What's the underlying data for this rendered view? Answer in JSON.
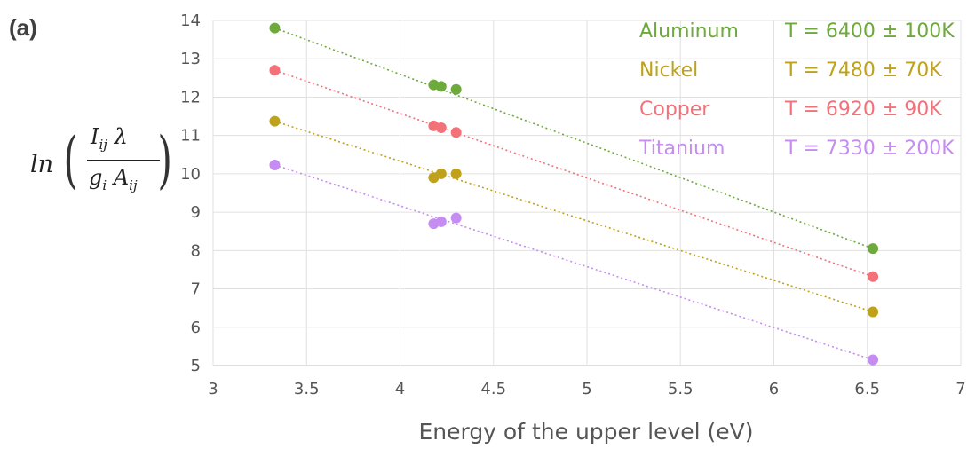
{
  "panel_label": "(a)",
  "chart_data": {
    "type": "scatter",
    "title": "",
    "xlabel": "Energy of the upper level (eV)",
    "ylabel": {
      "prefix": "ln",
      "numerator": "I_{ij} λ",
      "denominator": "g_i A_{ij}"
    },
    "xlim": [
      3,
      7
    ],
    "ylim": [
      5,
      14
    ],
    "xticks": [
      "3",
      "3.5",
      "4",
      "4.5",
      "5",
      "5.5",
      "6",
      "6.5",
      "7"
    ],
    "yticks": [
      "5",
      "6",
      "7",
      "8",
      "9",
      "10",
      "11",
      "12",
      "13",
      "14"
    ],
    "grid": true,
    "legend_position": "top-right",
    "series": [
      {
        "name": "Aluminum",
        "annotation": "T = 6400 ± 100K",
        "color": "#6ea93c",
        "points": [
          [
            3.33,
            13.8
          ],
          [
            4.18,
            12.32
          ],
          [
            4.22,
            12.28
          ],
          [
            4.3,
            12.2
          ],
          [
            6.53,
            8.05
          ]
        ],
        "trend": [
          [
            3.33,
            13.8
          ],
          [
            6.53,
            8.05
          ]
        ]
      },
      {
        "name": "Nickel",
        "annotation": "T = 7480 ± 70K",
        "color": "#bfa21a",
        "points": [
          [
            3.33,
            11.37
          ],
          [
            4.18,
            9.9
          ],
          [
            4.22,
            10.0
          ],
          [
            4.3,
            10.0
          ],
          [
            6.53,
            6.4
          ]
        ],
        "trend": [
          [
            3.33,
            11.37
          ],
          [
            6.53,
            6.4
          ]
        ]
      },
      {
        "name": "Copper",
        "annotation": "T = 6920 ± 90K",
        "color": "#f3727a",
        "points": [
          [
            3.33,
            12.7
          ],
          [
            4.18,
            11.25
          ],
          [
            4.22,
            11.2
          ],
          [
            4.3,
            11.08
          ],
          [
            6.53,
            7.32
          ]
        ],
        "trend": [
          [
            3.33,
            12.7
          ],
          [
            6.53,
            7.32
          ]
        ]
      },
      {
        "name": "Titanium",
        "annotation": "T = 7330 ± 200K",
        "color": "#c58cf2",
        "points": [
          [
            3.33,
            10.23
          ],
          [
            4.18,
            8.7
          ],
          [
            4.22,
            8.75
          ],
          [
            4.3,
            8.85
          ],
          [
            6.53,
            5.15
          ]
        ],
        "trend": [
          [
            3.33,
            10.23
          ],
          [
            6.53,
            5.15
          ]
        ]
      }
    ]
  }
}
